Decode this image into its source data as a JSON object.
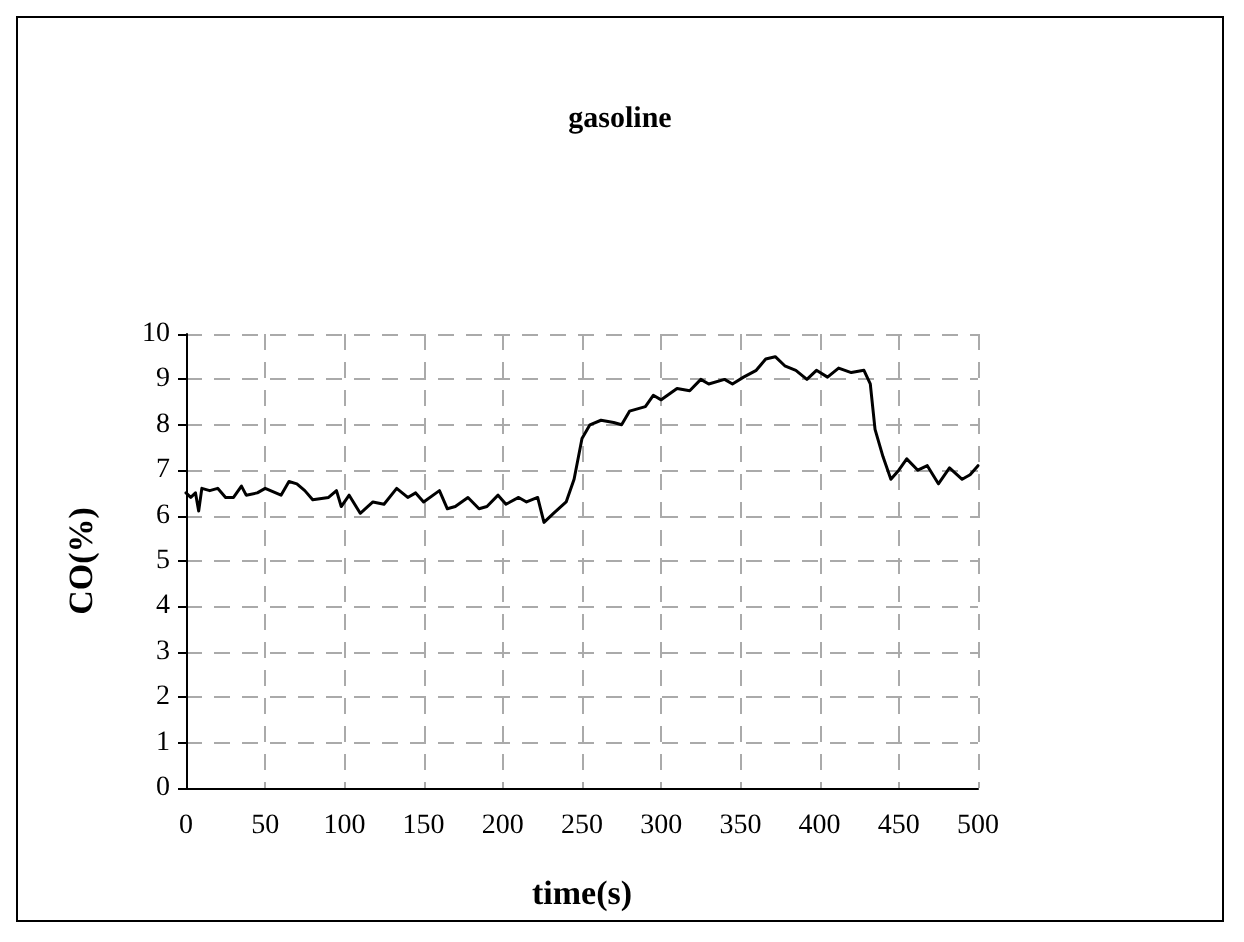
{
  "chart_data": {
    "type": "line",
    "title": "gasoline",
    "xlabel": "time(s)",
    "ylabel": "CO(%)",
    "xlim": [
      0,
      500
    ],
    "xticks": [
      0,
      50,
      100,
      150,
      200,
      250,
      300,
      350,
      400,
      450,
      500
    ],
    "ylim": [
      0,
      10
    ],
    "yticks": [
      0,
      1,
      2,
      3,
      4,
      5,
      6,
      7,
      8,
      9,
      10
    ],
    "grid": true,
    "marker": "none",
    "line_style": "solid",
    "series": [
      {
        "color": "#000000",
        "x": [
          0,
          3,
          6,
          8,
          10,
          15,
          20,
          25,
          30,
          35,
          38,
          45,
          50,
          60,
          65,
          70,
          75,
          80,
          90,
          95,
          98,
          103,
          110,
          118,
          125,
          133,
          140,
          145,
          150,
          160,
          165,
          170,
          178,
          185,
          190,
          197,
          202,
          210,
          215,
          222,
          226,
          232,
          240,
          245,
          250,
          255,
          262,
          270,
          275,
          280,
          290,
          295,
          300,
          310,
          318,
          325,
          330,
          340,
          345,
          352,
          360,
          366,
          372,
          378,
          385,
          392,
          398,
          405,
          412,
          420,
          428,
          432,
          435,
          440,
          445,
          450,
          455,
          462,
          468,
          475,
          482,
          490,
          495,
          500
        ],
        "values": [
          6.5,
          6.4,
          6.5,
          6.1,
          6.6,
          6.55,
          6.6,
          6.4,
          6.4,
          6.65,
          6.45,
          6.5,
          6.6,
          6.45,
          6.75,
          6.7,
          6.55,
          6.35,
          6.4,
          6.55,
          6.2,
          6.45,
          6.05,
          6.3,
          6.25,
          6.6,
          6.4,
          6.5,
          6.3,
          6.55,
          6.15,
          6.2,
          6.4,
          6.15,
          6.2,
          6.45,
          6.25,
          6.4,
          6.3,
          6.4,
          5.85,
          6.05,
          6.3,
          6.8,
          7.7,
          8.0,
          8.1,
          8.05,
          8.0,
          8.3,
          8.4,
          8.65,
          8.55,
          8.8,
          8.75,
          9.0,
          8.9,
          9.0,
          8.9,
          9.05,
          9.2,
          9.45,
          9.5,
          9.3,
          9.2,
          9.0,
          9.2,
          9.05,
          9.25,
          9.15,
          9.2,
          8.9,
          7.9,
          7.3,
          6.8,
          7.0,
          7.25,
          7.0,
          7.1,
          6.7,
          7.05,
          6.8,
          6.9,
          7.1
        ]
      }
    ]
  }
}
